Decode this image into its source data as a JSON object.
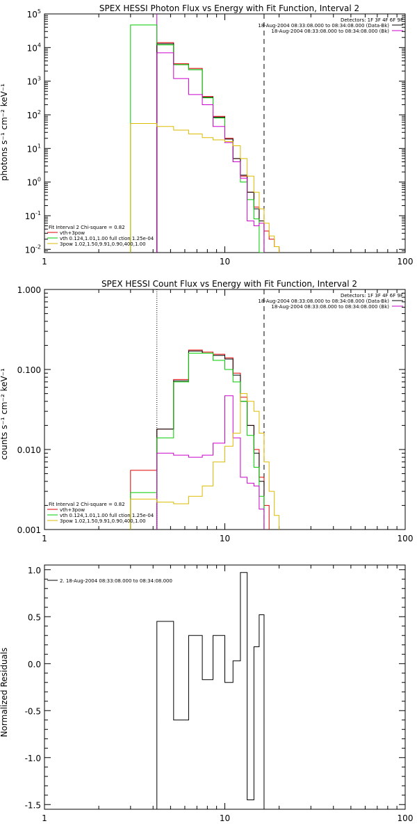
{
  "chart_data": [
    {
      "type": "line",
      "title": "SPEX HESSI Photon Flux vs Energy with Fit Function, Interval 2",
      "ylabel": "photons s⁻¹ cm⁻² keV⁻¹",
      "xlabel": "",
      "x_scale": "log",
      "y_scale": "log",
      "xlim": [
        1,
        100
      ],
      "ylim": [
        0.008,
        100000
      ],
      "x_ticks": [
        {
          "v": 1,
          "label": "1"
        },
        {
          "v": 10,
          "label": "10"
        },
        {
          "v": 100,
          "label": "100"
        }
      ],
      "y_ticks": [
        {
          "v": 0.01,
          "base": "10",
          "exp": "-2"
        },
        {
          "v": 0.1,
          "base": "10",
          "exp": "-1"
        },
        {
          "v": 1,
          "base": "10",
          "exp": "0"
        },
        {
          "v": 10,
          "base": "10",
          "exp": "1"
        },
        {
          "v": 100,
          "base": "10",
          "exp": "2"
        },
        {
          "v": 1000,
          "base": "10",
          "exp": "3"
        },
        {
          "v": 10000,
          "base": "10",
          "exp": "4"
        },
        {
          "v": 100000,
          "base": "10",
          "exp": "5"
        }
      ],
      "legend_top": {
        "title": "Detectors: 1F 3F 4F 6F 9F",
        "entries": [
          {
            "text": "18-Aug-2004 08:33:08.000 to 08:34:08.000 (Data-Bk)",
            "color": "#000000"
          },
          {
            "text": "18-Aug-2004 08:33:08.000 to 08:34:08.000 (Bk)",
            "color": "#cc00cc"
          }
        ]
      },
      "legend_bottom": {
        "title": "Fit Interval  2    Chi-square = 0.82",
        "entries": [
          {
            "text": "vth+3pow",
            "color": "#dd0000"
          },
          {
            "text": "vth 0.124,1.01,1.00  full ction 1.25e-04",
            "color": "#00cc00"
          },
          {
            "text": "3pow 1.02,1.50,9.91,0.90,400,1.00",
            "color": "#ddbb00"
          }
        ]
      },
      "vlines": [
        {
          "x": 4.2,
          "style": "solid",
          "color": "#cc00cc"
        },
        {
          "x": 16.5,
          "style": "dashed",
          "color": "#000000"
        }
      ],
      "series": [
        {
          "name": "vth+3pow",
          "color": "#dd0000",
          "type": "step",
          "edges": [
            3,
            4.2,
            5.2,
            6.3,
            7.5,
            8.6,
            10,
            11.1,
            12.2,
            13.3,
            14.5,
            15.5,
            16.5,
            17.6,
            18.8,
            20
          ],
          "values": [
            null,
            14000,
            3300,
            2400,
            350,
            90,
            20,
            5,
            1.5,
            0.5,
            0.18,
            0.07,
            0.035,
            0.02,
            0.012
          ]
        },
        {
          "name": "Data-Bk",
          "color": "#000000",
          "type": "step",
          "edges": [
            4.2,
            5.2,
            6.3,
            7.5,
            8.6,
            10,
            11.1,
            12.2,
            13.3,
            14.5,
            15.5,
            16.5
          ],
          "values": [
            13000,
            3100,
            2200,
            330,
            85,
            19,
            5,
            1.6,
            0.5,
            0.16,
            0.07
          ]
        },
        {
          "name": "vth",
          "color": "#00cc00",
          "type": "step",
          "edges": [
            3,
            4.2,
            5.2,
            6.3,
            7.5,
            8.6,
            10,
            11.1,
            12.2,
            13.3,
            14.5,
            15.5,
            16.5
          ],
          "values": [
            47000,
            12000,
            3100,
            2200,
            320,
            80,
            16,
            4,
            1,
            0.3,
            0.08,
            0.008
          ]
        },
        {
          "name": "Bk",
          "color": "#cc00cc",
          "type": "step",
          "edges": [
            4.2,
            5.2,
            6.3,
            7.5,
            8.6,
            10,
            11.1,
            12.2,
            13.3,
            14.5,
            15.5,
            16.5
          ],
          "values": [
            7000,
            1200,
            400,
            200,
            45,
            15,
            4,
            1.3,
            0.07,
            0.05,
            0.06
          ]
        },
        {
          "name": "3pow",
          "color": "#ddbb00",
          "type": "step",
          "edges": [
            3,
            4.2,
            5.2,
            6.3,
            7.5,
            8.6,
            10,
            11.1,
            12.2,
            13.3,
            14.5,
            15.5,
            16.5,
            17.6,
            18.8,
            20
          ],
          "values": [
            55,
            45,
            35,
            27,
            21,
            18,
            16,
            12,
            5,
            1.5,
            0.5,
            0.16,
            0.06,
            0.025,
            0.012
          ]
        }
      ]
    },
    {
      "type": "line",
      "title": "SPEX HESSI Count Flux vs Energy with Fit Function, Interval 2",
      "ylabel": "counts s⁻¹ cm⁻² keV⁻¹",
      "xlabel": "",
      "x_scale": "log",
      "y_scale": "log",
      "xlim": [
        1,
        100
      ],
      "ylim": [
        0.001,
        1
      ],
      "x_ticks": [
        {
          "v": 1,
          "label": "1"
        },
        {
          "v": 10,
          "label": "10"
        },
        {
          "v": 100,
          "label": "100"
        }
      ],
      "y_ticks": [
        {
          "v": 0.001,
          "label": "0.001"
        },
        {
          "v": 0.01,
          "label": "0.010"
        },
        {
          "v": 0.1,
          "label": "0.100"
        },
        {
          "v": 1,
          "label": "1.000"
        }
      ],
      "legend_top": {
        "title": "Detectors: 1F 3F 4F 6F 9F",
        "entries": [
          {
            "text": "18-Aug-2004 08:33:08.000 to 08:34:08.000 (Data-Bk)",
            "color": "#000000"
          },
          {
            "text": "18-Aug-2004 08:33:08.000 to 08:34:08.000 (Bk)",
            "color": "#cc00cc"
          }
        ]
      },
      "legend_bottom": {
        "title": "Fit Interval  2    Chi-square = 0.82",
        "entries": [
          {
            "text": "vth+3pow",
            "color": "#dd0000"
          },
          {
            "text": "vth 0.124,1.01,1.00  full ction 1.25e-04",
            "color": "#00cc00"
          },
          {
            "text": "3pow 1.02,1.50,9.91,0.90,400,1.00",
            "color": "#ddbb00"
          }
        ]
      },
      "vlines": [
        {
          "x": 4.2,
          "style": "dotted",
          "color": "#000000"
        },
        {
          "x": 16.5,
          "style": "dashed",
          "color": "#000000"
        }
      ],
      "series": [
        {
          "name": "vth+3pow",
          "color": "#dd0000",
          "type": "step",
          "edges": [
            3,
            4.2,
            5.2,
            6.3,
            7.5,
            8.6,
            10,
            11.1,
            12.2,
            13.3,
            14.5,
            15.5,
            16.5,
            17.6
          ],
          "values": [
            0.0055,
            0.018,
            0.075,
            0.175,
            0.165,
            0.155,
            0.14,
            0.09,
            0.045,
            0.02,
            0.01,
            0.0045,
            0.002
          ]
        },
        {
          "name": "Data-Bk",
          "color": "#000000",
          "type": "step",
          "edges": [
            4.2,
            5.2,
            6.3,
            7.5,
            8.6,
            10,
            11.1,
            12.2,
            13.3,
            14.5,
            15.5,
            16.5
          ],
          "values": [
            0.018,
            0.072,
            0.17,
            0.16,
            0.15,
            0.135,
            0.085,
            0.04,
            0.02,
            0.009,
            0.004
          ]
        },
        {
          "name": "vth",
          "color": "#00cc00",
          "type": "step",
          "edges": [
            3,
            4.2,
            5.2,
            6.3,
            7.5,
            8.6,
            10,
            11.1,
            12.2,
            13.3,
            14.5,
            15.5,
            16.5
          ],
          "values": [
            0.0029,
            0.014,
            0.07,
            0.16,
            0.16,
            0.13,
            0.1,
            0.07,
            0.04,
            0.015,
            0.006,
            0.0026
          ]
        },
        {
          "name": "Bk",
          "color": "#cc00cc",
          "type": "step",
          "edges": [
            4.2,
            5.2,
            6.3,
            7.5,
            8.6,
            10,
            11.1,
            12.2,
            13.3,
            14.5,
            15.5,
            16.5
          ],
          "values": [
            0.009,
            0.0085,
            0.008,
            0.0085,
            0.012,
            0.047,
            0.014,
            0.0045,
            0.0038,
            0.0035,
            0.0018
          ]
        },
        {
          "name": "3pow",
          "color": "#ddbb00",
          "type": "step",
          "edges": [
            3,
            4.2,
            5.2,
            6.3,
            7.5,
            8.6,
            10,
            11.1,
            12.2,
            13.3,
            14.5,
            15.5,
            16.5,
            17.6,
            18.8,
            20
          ],
          "values": [
            0.0024,
            0.0022,
            0.0021,
            0.0026,
            0.0035,
            0.007,
            0.011,
            0.016,
            0.05,
            0.04,
            0.03,
            0.016,
            0.007,
            0.003,
            0.0015
          ]
        }
      ]
    },
    {
      "type": "line",
      "title": "",
      "ylabel": "Normalized Residuals",
      "xlabel": "",
      "x_scale": "log",
      "y_scale": "linear",
      "xlim": [
        1,
        100
      ],
      "ylim": [
        -1.55,
        1.05
      ],
      "x_ticks": [
        {
          "v": 1,
          "label": "1"
        },
        {
          "v": 10,
          "label": "10"
        },
        {
          "v": 100,
          "label": "100"
        }
      ],
      "y_ticks": [
        {
          "v": -1.5,
          "label": "-1.5"
        },
        {
          "v": -1.0,
          "label": "-1.0"
        },
        {
          "v": -0.5,
          "label": "-0.5"
        },
        {
          "v": 0.0,
          "label": "0.0"
        },
        {
          "v": 0.5,
          "label": "0.5"
        },
        {
          "v": 1.0,
          "label": "1.0"
        }
      ],
      "legend_top_left": {
        "entries": [
          {
            "text": "2. 18-Aug-2004 08:33:08.000 to 08:34:08.000",
            "color": "#000000"
          }
        ]
      },
      "series": [
        {
          "name": "residuals",
          "color": "#000000",
          "type": "step_residual",
          "edges": [
            4.2,
            5.2,
            6.3,
            7.5,
            8.6,
            10,
            11.1,
            12.2,
            13.3,
            14.5,
            15.5,
            16.5
          ],
          "values": [
            0.45,
            -0.6,
            0.3,
            -0.17,
            0.3,
            -0.2,
            0.03,
            0.97,
            -1.45,
            0.18,
            0.52
          ],
          "floor": -1.55
        }
      ]
    }
  ]
}
